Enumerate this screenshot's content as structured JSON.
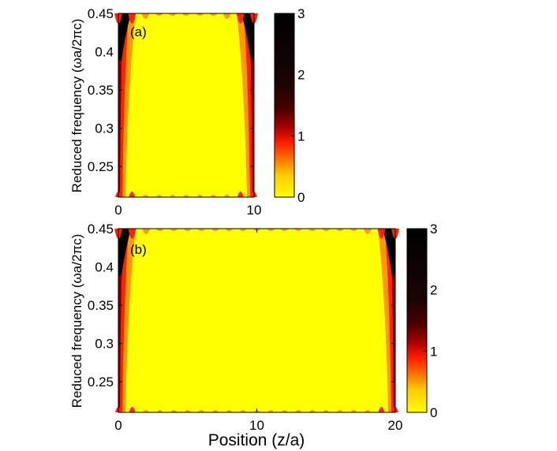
{
  "chart_data": [
    {
      "type": "heatmap",
      "panel_label": "(a)",
      "ylabel": "Reduced frequency (ωa/2πc)",
      "xlabel": "",
      "xlim": [
        0,
        10
      ],
      "ylim": [
        0.21,
        0.45
      ],
      "xticks": [
        0,
        10
      ],
      "yticks": [
        0.25,
        0.3,
        0.35,
        0.4,
        0.45
      ],
      "colorbar": {
        "range": [
          0,
          3
        ],
        "ticks": [
          0,
          1,
          2,
          3
        ]
      },
      "edge_peaks_x": [
        0,
        1,
        2,
        3,
        4,
        5,
        6,
        7,
        8,
        9,
        10
      ]
    },
    {
      "type": "heatmap",
      "panel_label": "(b)",
      "ylabel": "Reduced frequency (ωa/2πc)",
      "xlabel": "Position (z/a)",
      "xlim": [
        0,
        20
      ],
      "ylim": [
        0.21,
        0.45
      ],
      "xticks": [
        0,
        10,
        20
      ],
      "yticks": [
        0.25,
        0.3,
        0.35,
        0.4,
        0.45
      ],
      "colorbar": {
        "range": [
          0,
          3
        ],
        "ticks": [
          0,
          1,
          2,
          3
        ]
      },
      "edge_peaks_x": [
        0,
        1,
        2,
        3,
        4,
        5,
        6,
        7,
        8,
        9,
        10,
        11,
        12,
        13,
        14,
        15,
        16,
        17,
        18,
        19,
        20
      ]
    }
  ],
  "colors": {
    "low": "#ffff00",
    "mid_low": "#ff9900",
    "mid": "#ff2200",
    "mid_high": "#7a0000",
    "high": "#000000"
  }
}
